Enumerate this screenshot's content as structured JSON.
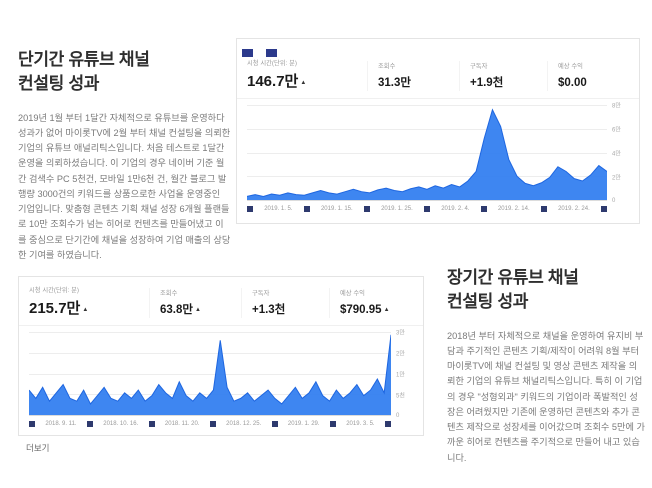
{
  "page": {
    "background": "#ffffff"
  },
  "colors": {
    "chart_fill": "#2e7cf0",
    "chart_line": "#1e66e0",
    "marker_navy": "#2e3a6e",
    "tab_navy": "#2c3a8c"
  },
  "article_short": {
    "title_line1": "단기간 유튜브 채널",
    "title_line2": "컨설팅 성과",
    "body": "2019년 1월 부터 1달간 자체적으로 유튜브를 운영하다 성과가 없어 마이롯TV에 2월 부터 채널 컨설팅을 의뢰한 기업의 유튜브 애널리틱스입니다. 처음 테스트로 1달간 운영을 의뢰하셨습니다. 이 기업의 경우 네이버 기준 월간 검색수 PC 5천건, 모바일 1만6천 건, 월간 블로그 발행량 3000건의 키워드를 상품으로한 사업을 운영중인 기업입니다. 맞춤형 콘텐츠 기획 채널 성장 6개월 플랜들로 10만 조회수가 넘는 히어로 컨텐츠를 만들어냈고 이를 중심으로 단기간에 채널을 성장하여 기업 매출의 상당한 기여를 하였습니다."
  },
  "article_long": {
    "title_line1": "장기간 유튜브 채널",
    "title_line2": "컨설팅 성과",
    "body": "2018년 부터 자체적으로 채널을 운영하여 유지비 부담과 주기적인 콘텐츠 기획/제작이 어려워 8월 부터 마이롯TV에 채널 컨설팅 및 영상 콘텐츠 제작을 의뢰한 기업의 유튜브 채널리틱스입니다. 특히 이 기업의 경우 \"성형외과\" 키워드의 기업이라 폭발적인 성장은 어려웠지만 기존에 운영하던 콘텐츠와 추가 콘텐츠 제작으로 성장세를 이어갔으며 조회수 5만에 가까운 히어로 컨텐츠를 주기적으로 만들어 내고 있습니다."
  },
  "panel_short": {
    "metrics": [
      {
        "label": "시청 시간(단위: 분)",
        "value": "146.7만",
        "delta": "▲"
      },
      {
        "label": "조회수",
        "value": "31.3만",
        "delta": ""
      },
      {
        "label": "구독자",
        "value": "+1.9천",
        "delta": ""
      },
      {
        "label": "예상 수익",
        "value": "$0.00",
        "delta": ""
      }
    ]
  },
  "panel_long": {
    "metrics": [
      {
        "label": "시청 시간(단위: 분)",
        "value": "215.7만",
        "delta": "▲"
      },
      {
        "label": "조회수",
        "value": "63.8만",
        "delta": "▲"
      },
      {
        "label": "구독자",
        "value": "+1.3천",
        "delta": ""
      },
      {
        "label": "예상 수익",
        "value": "$790.95",
        "delta": "▲"
      }
    ],
    "more_label": "더보기"
  },
  "chart_data": [
    {
      "type": "area",
      "title": "단기간 채널 시청 시간 추이",
      "metric": "시청 시간(단위: 분)",
      "legend_position": "none",
      "grid": true,
      "ymax": 8,
      "y_ticks": [
        "8만",
        "6만",
        "4만",
        "2만",
        "0"
      ],
      "x_ticks": [
        "2019. 1. 5.",
        "2019. 1. 15.",
        "2019. 1. 25.",
        "2019. 2. 4.",
        "2019. 2. 14.",
        "2019. 2. 24."
      ],
      "values": [
        0.3,
        0.45,
        0.3,
        0.5,
        0.4,
        0.6,
        0.45,
        0.4,
        0.6,
        0.8,
        0.6,
        0.5,
        0.7,
        0.9,
        0.7,
        0.6,
        0.85,
        1.0,
        0.8,
        0.7,
        0.95,
        1.1,
        0.9,
        1.2,
        1.0,
        1.3,
        1.1,
        1.6,
        2.4,
        5.2,
        7.6,
        6.2,
        3.4,
        2.0,
        1.4,
        1.2,
        1.45,
        1.9,
        2.8,
        2.4,
        1.8,
        1.6,
        2.1,
        2.9,
        2.4
      ]
    },
    {
      "type": "area",
      "title": "장기간 채널 시청 시간 추이",
      "metric": "시청 시간(단위: 분)",
      "legend_position": "none",
      "grid": true,
      "ymax": 30,
      "y_ticks": [
        "3만",
        "2만",
        "1만",
        "5천",
        "0"
      ],
      "x_ticks": [
        "2018. 9. 11.",
        "2018. 10. 16.",
        "2018. 11. 20.",
        "2018. 12. 25.",
        "2019. 1. 29.",
        "2019. 3. 5."
      ],
      "values": [
        9,
        6,
        10,
        5,
        8,
        11,
        6,
        5,
        9,
        4,
        7,
        10,
        6,
        5,
        8,
        6,
        9,
        5,
        7,
        11,
        8,
        6,
        12,
        7,
        5,
        8,
        6,
        9,
        27,
        10,
        5,
        6,
        8,
        5,
        7,
        9,
        6,
        4,
        7,
        10,
        6,
        8,
        12,
        7,
        5,
        9,
        6,
        8,
        11,
        7,
        9,
        13,
        8,
        29
      ]
    }
  ]
}
